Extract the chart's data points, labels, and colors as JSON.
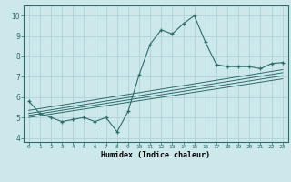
{
  "xlabel": "Humidex (Indice chaleur)",
  "bg_color": "#cce8ea",
  "line_color": "#2e6b6b",
  "grid_color": "#aacfd2",
  "xlim": [
    -0.5,
    23.5
  ],
  "ylim": [
    3.8,
    10.5
  ],
  "xticks": [
    0,
    1,
    2,
    3,
    4,
    5,
    6,
    7,
    8,
    9,
    10,
    11,
    12,
    13,
    14,
    15,
    16,
    17,
    18,
    19,
    20,
    21,
    22,
    23
  ],
  "yticks": [
    4,
    5,
    6,
    7,
    8,
    9,
    10
  ],
  "main_x": [
    0,
    1,
    2,
    3,
    4,
    5,
    6,
    7,
    8,
    9,
    10,
    11,
    12,
    13,
    14,
    15,
    16,
    17,
    18,
    19,
    20,
    21,
    22,
    23
  ],
  "main_y": [
    5.8,
    5.2,
    5.0,
    4.8,
    4.9,
    5.0,
    4.8,
    5.0,
    4.3,
    5.3,
    7.1,
    8.6,
    9.3,
    9.1,
    9.6,
    10.0,
    8.7,
    7.6,
    7.5,
    7.5,
    7.5,
    7.4,
    7.65,
    7.7
  ],
  "trend_lines": [
    [
      [
        0,
        23
      ],
      [
        5.0,
        6.9
      ]
    ],
    [
      [
        0,
        23
      ],
      [
        5.1,
        7.05
      ]
    ],
    [
      [
        0,
        23
      ],
      [
        5.2,
        7.2
      ]
    ],
    [
      [
        0,
        23
      ],
      [
        5.35,
        7.35
      ]
    ]
  ]
}
